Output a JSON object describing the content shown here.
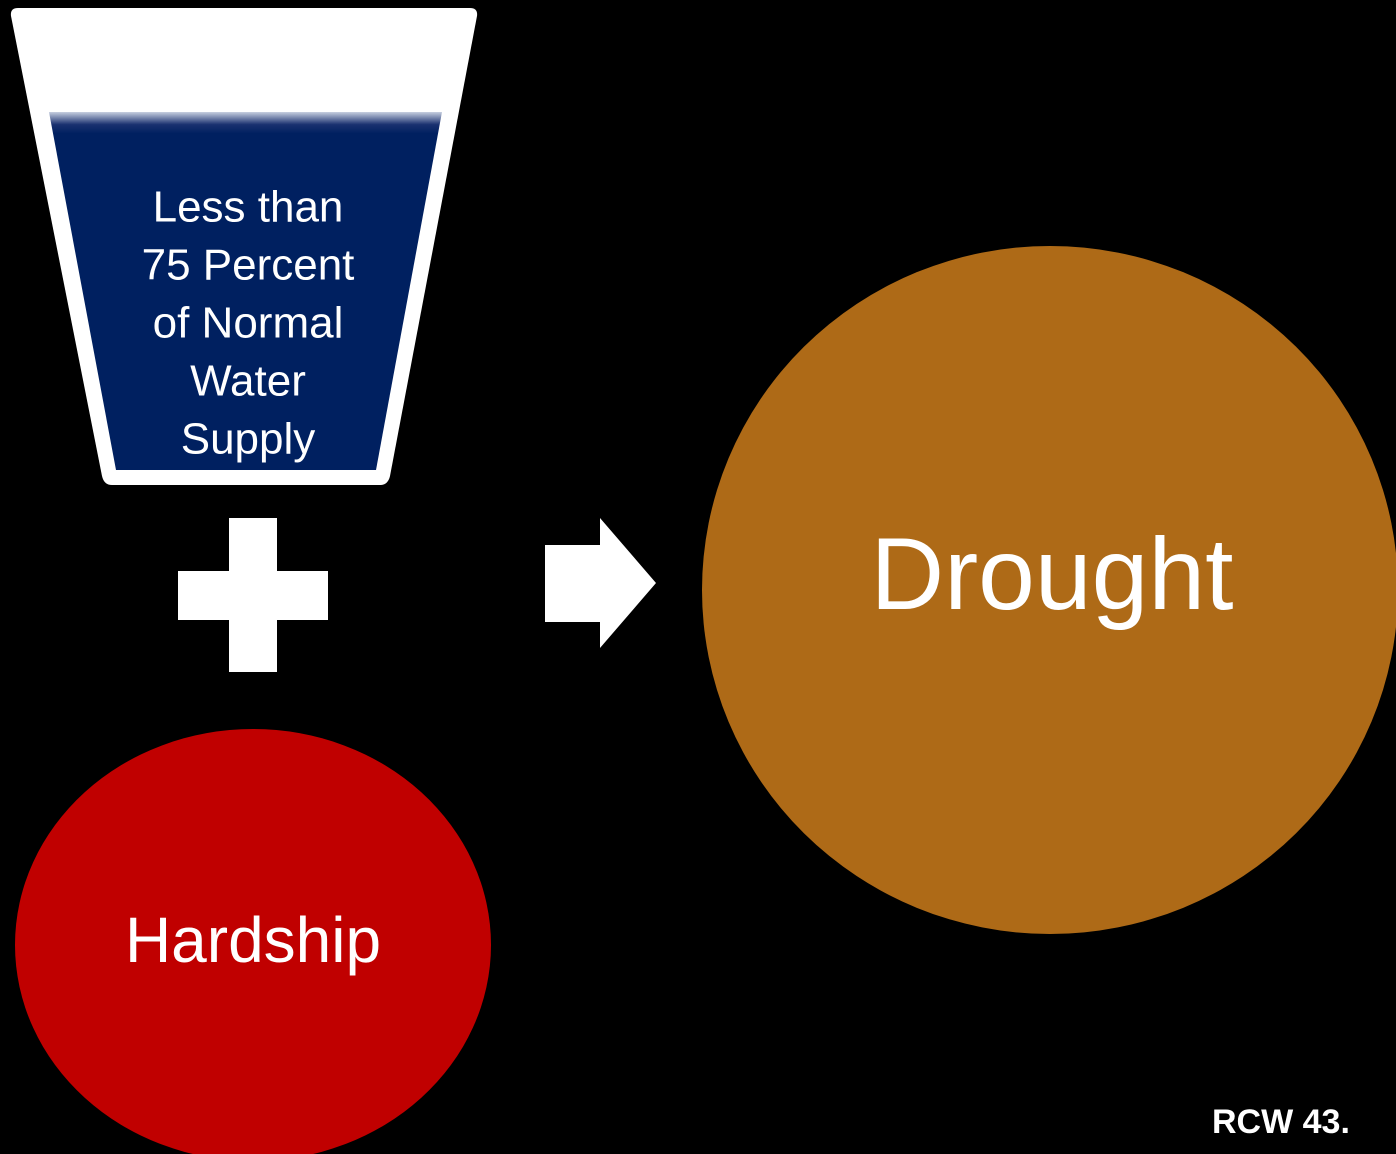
{
  "glass": {
    "lines": [
      "Less than",
      "75 Percent",
      "of Normal",
      "Water",
      "Supply"
    ]
  },
  "hardship": {
    "label": "Hardship"
  },
  "result": {
    "label": "Drought"
  },
  "footer": {
    "reference": "RCW 43."
  }
}
